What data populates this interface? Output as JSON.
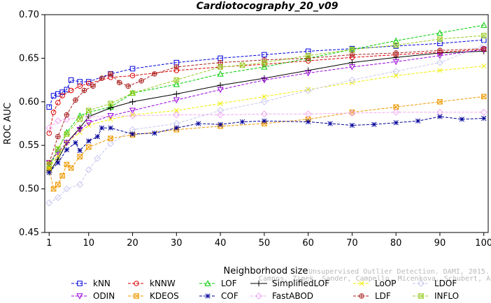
{
  "chart_data": {
    "type": "line",
    "title": "Cardiotocography_20_v09",
    "xlabel": "Neighborhood size",
    "ylabel": "ROC AUC",
    "xlim": [
      0,
      101
    ],
    "ylim": [
      0.45,
      0.7
    ],
    "xticks": [
      1,
      10,
      20,
      30,
      40,
      50,
      60,
      70,
      80,
      90,
      100
    ],
    "yticks": [
      "0.45",
      "0.50",
      "0.55",
      "0.60",
      "0.65",
      "0.70"
    ],
    "grid": false,
    "legend_position": "bottom",
    "watermark": [
      "Unsupervised Outlier Detection. DAMI, 2015.",
      "Campos, Zimek, Sander, Campello, Micenkova, Schubert, Assent, Houle"
    ],
    "series": [
      {
        "name": "kNN",
        "color": "#0000dd",
        "marker": "square",
        "dash": "dashed",
        "points": [
          [
            1,
            0.594
          ],
          [
            2,
            0.607
          ],
          [
            3,
            0.609
          ],
          [
            4,
            0.611
          ],
          [
            5,
            0.614
          ],
          [
            6,
            0.625
          ],
          [
            8,
            0.623
          ],
          [
            10,
            0.623
          ],
          [
            15,
            0.632
          ],
          [
            20,
            0.638
          ],
          [
            30,
            0.645
          ],
          [
            40,
            0.65
          ],
          [
            50,
            0.654
          ],
          [
            60,
            0.658
          ],
          [
            70,
            0.661
          ],
          [
            80,
            0.664
          ],
          [
            90,
            0.667
          ],
          [
            100,
            0.671
          ]
        ]
      },
      {
        "name": "kNNW",
        "color": "#dd0000",
        "marker": "circle",
        "dash": "dashed",
        "points": [
          [
            1,
            0.564
          ],
          [
            2,
            0.588
          ],
          [
            3,
            0.599
          ],
          [
            4,
            0.607
          ],
          [
            6,
            0.613
          ],
          [
            8,
            0.618
          ],
          [
            10,
            0.621
          ],
          [
            15,
            0.628
          ],
          [
            20,
            0.63
          ],
          [
            30,
            0.636
          ],
          [
            40,
            0.64
          ],
          [
            50,
            0.643
          ],
          [
            60,
            0.647
          ],
          [
            70,
            0.651
          ],
          [
            80,
            0.654
          ],
          [
            90,
            0.657
          ],
          [
            100,
            0.66
          ]
        ]
      },
      {
        "name": "LOF",
        "color": "#00cc00",
        "marker": "triangle",
        "dash": "dashed",
        "points": [
          [
            1,
            0.524
          ],
          [
            3,
            0.545
          ],
          [
            5,
            0.565
          ],
          [
            8,
            0.584
          ],
          [
            10,
            0.588
          ],
          [
            15,
            0.594
          ],
          [
            20,
            0.61
          ],
          [
            30,
            0.62
          ],
          [
            40,
            0.632
          ],
          [
            50,
            0.64
          ],
          [
            60,
            0.65
          ],
          [
            70,
            0.66
          ],
          [
            80,
            0.67
          ],
          [
            90,
            0.679
          ],
          [
            100,
            0.688
          ]
        ]
      },
      {
        "name": "SimplifiedLOF",
        "color": "#000000",
        "marker": "plus",
        "dash": "solid",
        "points": [
          [
            1,
            0.519
          ],
          [
            3,
            0.534
          ],
          [
            5,
            0.553
          ],
          [
            8,
            0.57
          ],
          [
            10,
            0.583
          ],
          [
            15,
            0.593
          ],
          [
            20,
            0.6
          ],
          [
            30,
            0.609
          ],
          [
            40,
            0.619
          ],
          [
            50,
            0.627
          ],
          [
            60,
            0.636
          ],
          [
            70,
            0.645
          ],
          [
            80,
            0.651
          ],
          [
            90,
            0.656
          ],
          [
            100,
            0.658
          ]
        ]
      },
      {
        "name": "LoOP",
        "color": "#eeee00",
        "marker": "x",
        "dash": "dashed",
        "points": [
          [
            1,
            0.524
          ],
          [
            3,
            0.538
          ],
          [
            5,
            0.553
          ],
          [
            8,
            0.565
          ],
          [
            10,
            0.573
          ],
          [
            15,
            0.58
          ],
          [
            20,
            0.585
          ],
          [
            30,
            0.59
          ],
          [
            40,
            0.598
          ],
          [
            50,
            0.606
          ],
          [
            60,
            0.614
          ],
          [
            70,
            0.622
          ],
          [
            80,
            0.63
          ],
          [
            90,
            0.636
          ],
          [
            100,
            0.641
          ]
        ]
      },
      {
        "name": "LDOF",
        "color": "#c8c8f0",
        "marker": "diamond",
        "dash": "dashed",
        "points": [
          [
            1,
            0.484
          ],
          [
            3,
            0.49
          ],
          [
            5,
            0.5
          ],
          [
            8,
            0.505
          ],
          [
            10,
            0.522
          ],
          [
            12,
            0.535
          ],
          [
            15,
            0.552
          ],
          [
            20,
            0.568
          ],
          [
            30,
            0.575
          ],
          [
            40,
            0.59
          ],
          [
            50,
            0.6
          ],
          [
            60,
            0.613
          ],
          [
            70,
            0.625
          ],
          [
            80,
            0.635
          ],
          [
            90,
            0.645
          ],
          [
            100,
            0.665
          ]
        ]
      },
      {
        "name": "ODIN",
        "color": "#9900dd",
        "marker": "triangle-down",
        "dash": "dashed",
        "points": [
          [
            1,
            0.53
          ],
          [
            3,
            0.542
          ],
          [
            5,
            0.553
          ],
          [
            8,
            0.568
          ],
          [
            10,
            0.576
          ],
          [
            15,
            0.584
          ],
          [
            20,
            0.59
          ],
          [
            30,
            0.602
          ],
          [
            40,
            0.614
          ],
          [
            50,
            0.625
          ],
          [
            60,
            0.633
          ],
          [
            70,
            0.64
          ],
          [
            80,
            0.646
          ],
          [
            90,
            0.653
          ],
          [
            100,
            0.66
          ]
        ]
      },
      {
        "name": "KDEOS",
        "color": "#ee9900",
        "marker": "square-x",
        "dash": "dashed",
        "points": [
          [
            1,
            0.523
          ],
          [
            2,
            0.5
          ],
          [
            3,
            0.505
          ],
          [
            4,
            0.515
          ],
          [
            5,
            0.528
          ],
          [
            6,
            0.524
          ],
          [
            8,
            0.537
          ],
          [
            10,
            0.548
          ],
          [
            15,
            0.558
          ],
          [
            20,
            0.562
          ],
          [
            30,
            0.568
          ],
          [
            40,
            0.572
          ],
          [
            50,
            0.575
          ],
          [
            60,
            0.58
          ],
          [
            70,
            0.588
          ],
          [
            80,
            0.594
          ],
          [
            90,
            0.6
          ],
          [
            100,
            0.606
          ]
        ]
      },
      {
        "name": "COF",
        "color": "#000099",
        "marker": "star",
        "dash": "dashed",
        "points": [
          [
            1,
            0.519
          ],
          [
            3,
            0.53
          ],
          [
            5,
            0.545
          ],
          [
            7,
            0.553
          ],
          [
            8,
            0.544
          ],
          [
            10,
            0.555
          ],
          [
            12,
            0.56
          ],
          [
            13,
            0.57
          ],
          [
            15,
            0.57
          ],
          [
            20,
            0.563
          ],
          [
            25,
            0.564
          ],
          [
            30,
            0.57
          ],
          [
            35,
            0.575
          ],
          [
            40,
            0.574
          ],
          [
            45,
            0.577
          ],
          [
            50,
            0.578
          ],
          [
            60,
            0.577
          ],
          [
            65,
            0.575
          ],
          [
            70,
            0.573
          ],
          [
            75,
            0.574
          ],
          [
            80,
            0.576
          ],
          [
            85,
            0.578
          ],
          [
            90,
            0.583
          ],
          [
            95,
            0.58
          ],
          [
            100,
            0.581
          ]
        ]
      },
      {
        "name": "FastABOD",
        "color": "#f0a8f0",
        "marker": "diamond",
        "dash": "dashed",
        "points": [
          [
            1,
            0.57
          ],
          [
            3,
            0.578
          ],
          [
            5,
            0.58
          ],
          [
            10,
            0.583
          ],
          [
            20,
            0.584
          ],
          [
            30,
            0.585
          ],
          [
            40,
            0.585
          ],
          [
            50,
            0.586
          ],
          [
            60,
            0.586
          ],
          [
            70,
            0.587
          ],
          [
            80,
            0.588
          ],
          [
            90,
            0.588
          ],
          [
            100,
            0.588
          ]
        ]
      },
      {
        "name": "LDF",
        "color": "#aa2222",
        "marker": "circle-plus",
        "dash": "dashed",
        "points": [
          [
            1,
            0.53
          ],
          [
            3,
            0.56
          ],
          [
            5,
            0.585
          ],
          [
            7,
            0.602
          ],
          [
            9,
            0.613
          ],
          [
            11,
            0.618
          ],
          [
            13,
            0.627
          ],
          [
            15,
            0.632
          ],
          [
            17,
            0.622
          ],
          [
            19,
            0.618
          ],
          [
            22,
            0.624
          ],
          [
            25,
            0.632
          ],
          [
            30,
            0.64
          ],
          [
            40,
            0.645
          ],
          [
            50,
            0.648
          ],
          [
            60,
            0.65
          ],
          [
            70,
            0.654
          ],
          [
            80,
            0.656
          ],
          [
            90,
            0.659
          ],
          [
            100,
            0.661
          ]
        ]
      },
      {
        "name": "INFLO",
        "color": "#99cc22",
        "marker": "square-x",
        "dash": "dashed",
        "points": [
          [
            1,
            0.528
          ],
          [
            3,
            0.546
          ],
          [
            5,
            0.563
          ],
          [
            8,
            0.58
          ],
          [
            10,
            0.59
          ],
          [
            15,
            0.598
          ],
          [
            20,
            0.61
          ],
          [
            30,
            0.625
          ],
          [
            40,
            0.64
          ],
          [
            45,
            0.642
          ],
          [
            50,
            0.645
          ],
          [
            60,
            0.653
          ],
          [
            70,
            0.66
          ],
          [
            80,
            0.665
          ],
          [
            90,
            0.672
          ],
          [
            100,
            0.676
          ]
        ]
      }
    ]
  }
}
